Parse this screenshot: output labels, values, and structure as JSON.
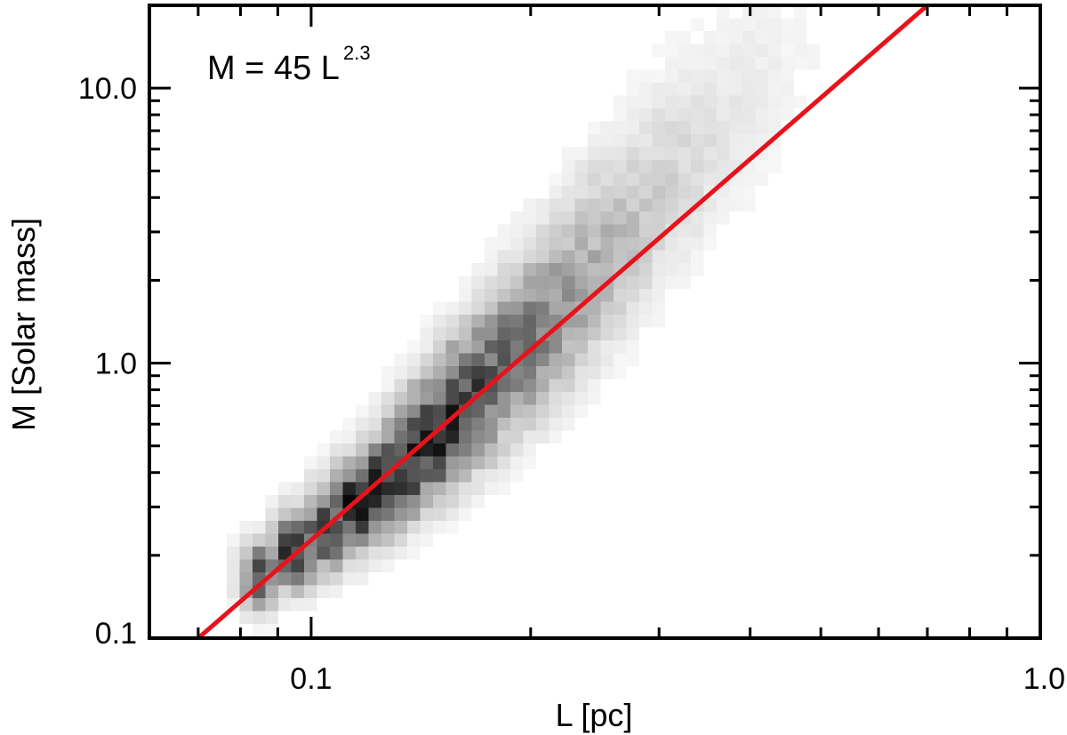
{
  "chart_data": {
    "type": "heatmap",
    "title": "",
    "xlabel": "L [pc]",
    "ylabel": "M [Solar mass]",
    "xscale": "log",
    "yscale": "log",
    "xlim": [
      0.06,
      1.0
    ],
    "ylim": [
      0.1,
      20
    ],
    "x_ticks": [
      {
        "value": 0.1,
        "label": "0.1"
      },
      {
        "value": 1.0,
        "label": "1.0"
      }
    ],
    "y_ticks": [
      {
        "value": 0.1,
        "label": "0.1"
      },
      {
        "value": 1.0,
        "label": "1.0"
      },
      {
        "value": 10.0,
        "label": "10.0"
      }
    ],
    "grid": false,
    "legend": "none",
    "annotation": {
      "text": "M = 45 L",
      "superscript": "2.3"
    },
    "density_ridge": {
      "description_free": true,
      "points": [
        {
          "L": 0.085,
          "M": 0.17
        },
        {
          "L": 0.095,
          "M": 0.21
        },
        {
          "L": 0.105,
          "M": 0.25
        },
        {
          "L": 0.115,
          "M": 0.3
        },
        {
          "L": 0.125,
          "M": 0.36
        },
        {
          "L": 0.135,
          "M": 0.43
        },
        {
          "L": 0.145,
          "M": 0.52
        },
        {
          "L": 0.155,
          "M": 0.62
        },
        {
          "L": 0.165,
          "M": 0.74
        },
        {
          "L": 0.178,
          "M": 0.9
        },
        {
          "L": 0.19,
          "M": 1.08
        },
        {
          "L": 0.205,
          "M": 1.35
        },
        {
          "L": 0.22,
          "M": 1.7
        },
        {
          "L": 0.24,
          "M": 2.2
        },
        {
          "L": 0.26,
          "M": 2.9
        },
        {
          "L": 0.285,
          "M": 3.8
        },
        {
          "L": 0.31,
          "M": 5.0
        },
        {
          "L": 0.34,
          "M": 6.6
        },
        {
          "L": 0.37,
          "M": 8.5
        },
        {
          "L": 0.4,
          "M": 11.0
        },
        {
          "L": 0.44,
          "M": 14.5
        }
      ],
      "widths": [
        0.05,
        0.055,
        0.06,
        0.065,
        0.07,
        0.075,
        0.08,
        0.085,
        0.09,
        0.095,
        0.1,
        0.105,
        0.11,
        0.115,
        0.12,
        0.125,
        0.13,
        0.135,
        0.14,
        0.145,
        0.15
      ],
      "intensity": [
        0.75,
        0.95,
        0.9,
        0.95,
        0.9,
        0.95,
        1.0,
        0.85,
        0.85,
        0.7,
        0.65,
        0.55,
        0.45,
        0.35,
        0.3,
        0.22,
        0.18,
        0.14,
        0.1,
        0.08,
        0.05
      ]
    },
    "series": [
      {
        "type": "line",
        "color": "#e8121b",
        "x": [
          0.07,
          0.7
        ],
        "y": [
          0.1,
          20.0
        ]
      }
    ],
    "colors": {
      "fit_line": "#e8121b",
      "frame": "#000000",
      "density_max": "#000000"
    }
  }
}
